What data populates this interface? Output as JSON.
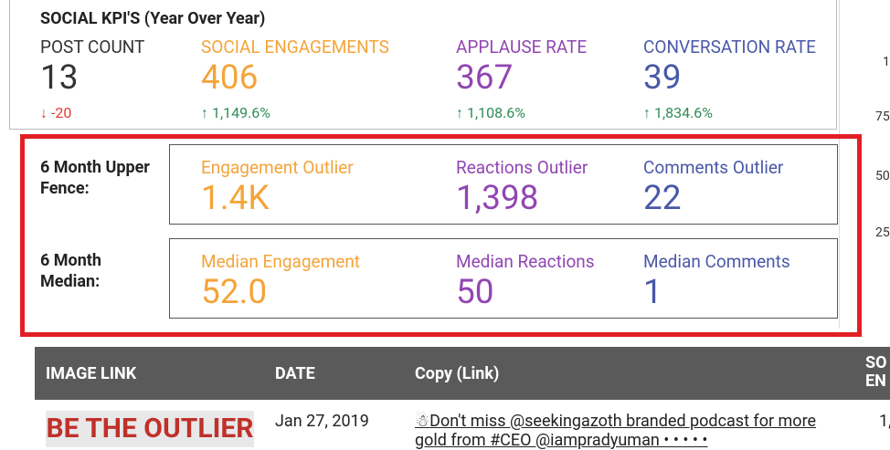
{
  "kpi": {
    "title": "SOCIAL KPI'S (Year Over Year)",
    "metrics": [
      {
        "label": "POST COUNT",
        "value": "13",
        "change": "-20"
      },
      {
        "label": "SOCIAL ENGAGEMENTS",
        "value": "406",
        "change": "1,149.6%"
      },
      {
        "label": "APPLAUSE RATE",
        "value": "367",
        "change": "1,108.6%"
      },
      {
        "label": "CONVERSATION RATE",
        "value": "39",
        "change": "1,834.6%"
      }
    ]
  },
  "fence": {
    "label": "6 Month Upper Fence:",
    "items": [
      {
        "label": "Engagement Outlier",
        "value": "1.4K"
      },
      {
        "label": "Reactions Outlier",
        "value": "1,398"
      },
      {
        "label": "Comments Outlier",
        "value": "22"
      }
    ]
  },
  "median": {
    "label": "6 Month Median:",
    "items": [
      {
        "label": "Median Engagement",
        "value": "52.0"
      },
      {
        "label": "Median Reactions",
        "value": "50"
      },
      {
        "label": "Median Comments",
        "value": "1"
      }
    ]
  },
  "table": {
    "headers": [
      "IMAGE LINK",
      "DATE",
      "Copy (Link)",
      "SO EN"
    ],
    "rows": [
      [
        "BE THE OUTLIER",
        "Jan 27, 2019",
        "Don't miss @seekingazoth branded podcast for more gold from #CEO @iampradyuman • • • • •",
        "1,"
      ]
    ]
  },
  "side_axis": [
    "1",
    "75",
    "50",
    "25"
  ]
}
